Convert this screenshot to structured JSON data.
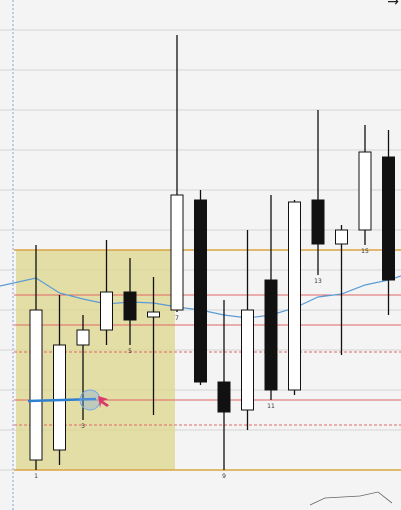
{
  "chart_data": {
    "type": "candlestick",
    "title": "",
    "xlabel": "",
    "ylabel": "",
    "grid": true,
    "colors": {
      "bullish": "#ffffff",
      "bearish": "#111111",
      "wick": "#111111",
      "ma_line": "#5b9bd5",
      "zone": "#ddd58c",
      "level_red": "#e06666",
      "level_orange": "#d9a441",
      "cursor_blue": "#2f7fd1",
      "cursor_red": "#d93a6a"
    },
    "candles": [
      {
        "label": "1",
        "open": 10,
        "high": 225,
        "low": 0,
        "close": 160
      },
      {
        "label": "",
        "open": 20,
        "high": 175,
        "low": 5,
        "close": 125
      },
      {
        "label": "3",
        "open": 125,
        "high": 155,
        "low": 50,
        "close": 140
      },
      {
        "label": "",
        "open": 140,
        "high": 230,
        "low": 125,
        "close": 178
      },
      {
        "label": "5",
        "open": 178,
        "high": 212,
        "low": 125,
        "close": 150
      },
      {
        "label": "",
        "open": 153,
        "high": 193,
        "low": 55,
        "close": 158
      },
      {
        "label": "7",
        "open": 160,
        "high": 435,
        "low": 158,
        "close": 275
      },
      {
        "label": "",
        "open": 270,
        "high": 280,
        "low": 85,
        "close": 88
      },
      {
        "label": "9",
        "open": 88,
        "high": 170,
        "low": 0,
        "close": 58
      },
      {
        "label": "",
        "open": 60,
        "high": 240,
        "low": 40,
        "close": 160
      },
      {
        "label": "11",
        "open": 190,
        "high": 275,
        "low": 70,
        "close": 80
      },
      {
        "label": "",
        "open": 80,
        "high": 270,
        "low": 75,
        "close": 268
      },
      {
        "label": "13",
        "open": 270,
        "high": 360,
        "low": 195,
        "close": 226
      },
      {
        "label": "",
        "open": 226,
        "high": 245,
        "low": 115,
        "close": 240
      },
      {
        "label": "15",
        "open": 240,
        "high": 345,
        "low": 225,
        "close": 318
      },
      {
        "label": "",
        "open": 313,
        "high": 340,
        "low": 155,
        "close": 190
      }
    ],
    "ma": [
      192,
      177,
      171,
      166,
      168,
      167,
      163,
      160,
      155,
      152,
      155,
      162,
      173,
      176,
      185,
      190
    ],
    "levels": [
      {
        "value": 220,
        "style": "orange"
      },
      {
        "value": 175,
        "style": "red"
      },
      {
        "value": 145,
        "style": "red"
      },
      {
        "value": 118,
        "style": "red-dashed"
      },
      {
        "value": 70,
        "style": "red"
      },
      {
        "value": 45,
        "style": "red-dashed"
      },
      {
        "value": 0,
        "style": "orange"
      }
    ],
    "zone": {
      "from_candle": 0,
      "to_candle": 6,
      "low": 0,
      "high": 220
    },
    "cursor": {
      "candle": 2.3,
      "value": 70
    },
    "ylim": [
      -20,
      470
    ]
  },
  "ui": {
    "corner_arrow": "→"
  }
}
